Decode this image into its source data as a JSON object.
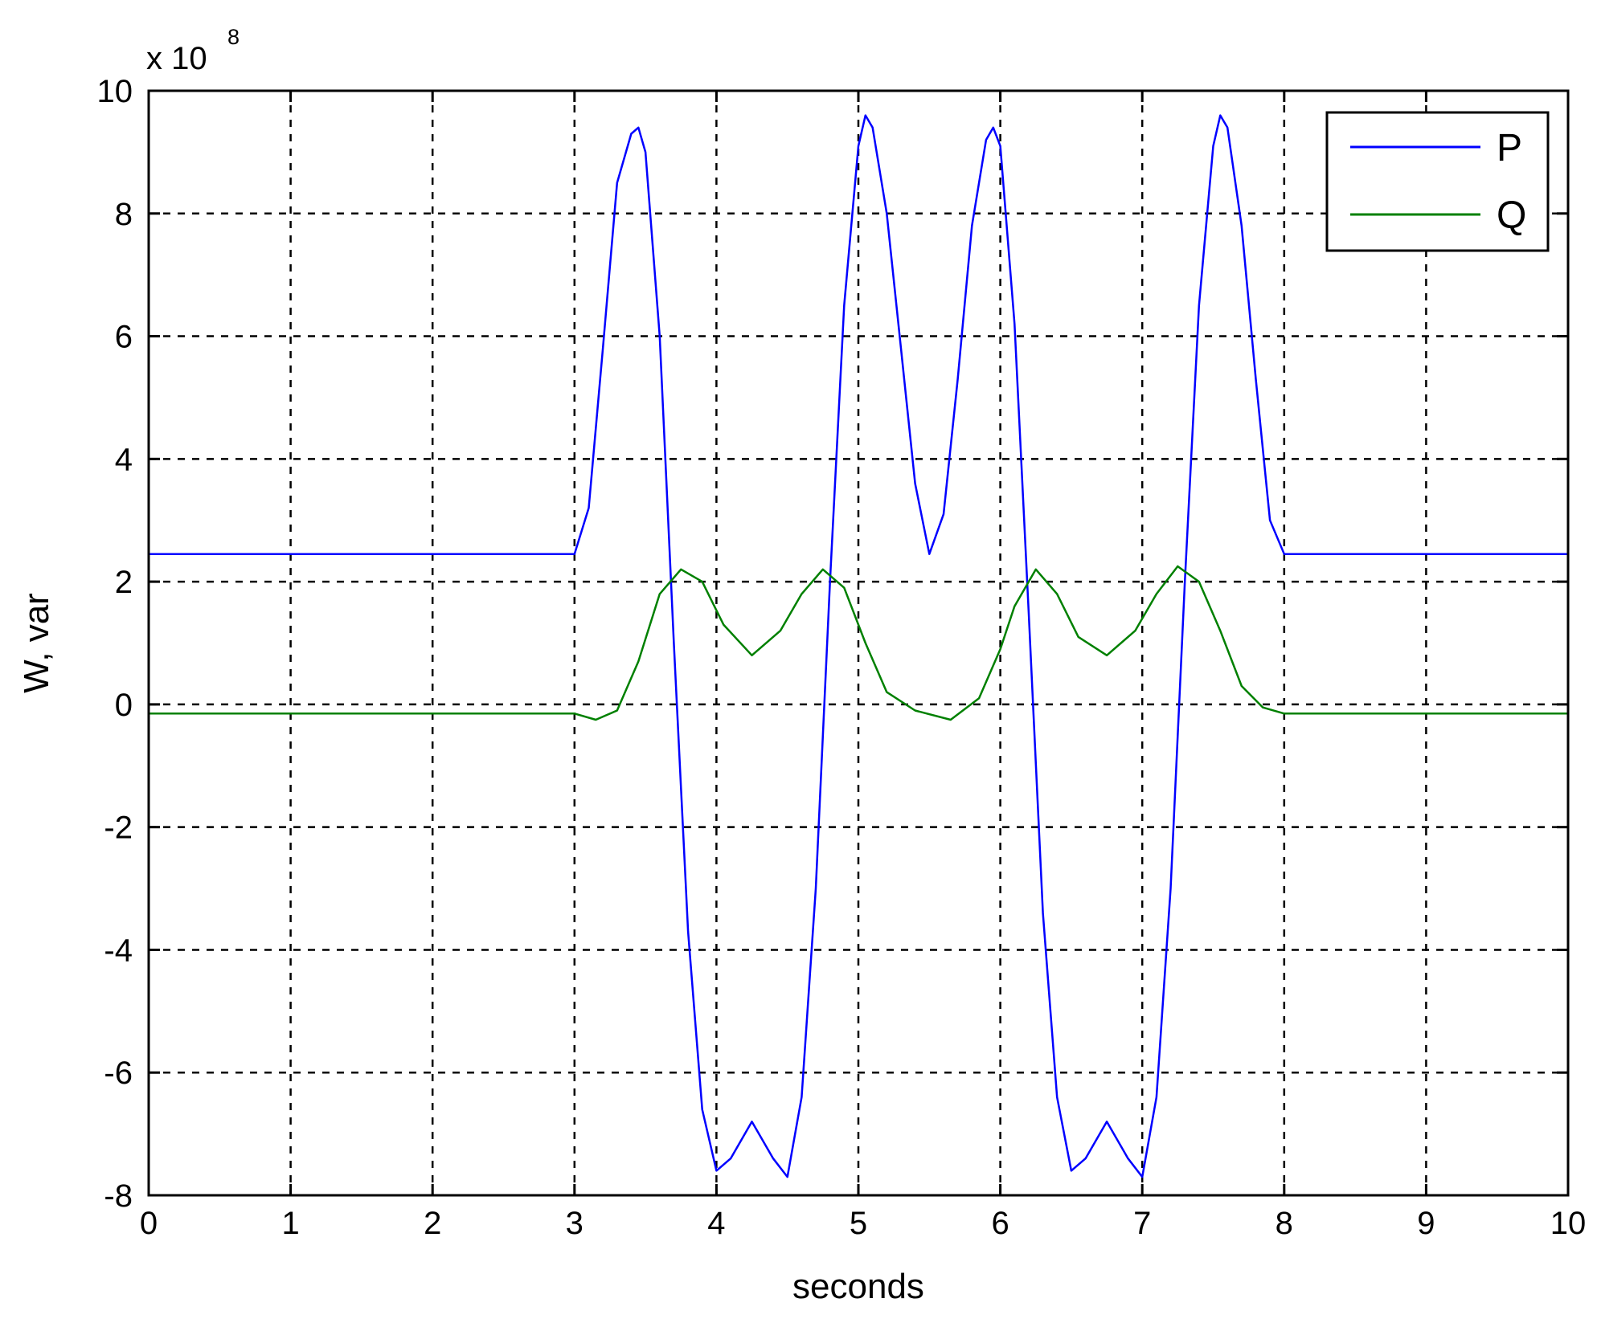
{
  "chart_data": {
    "type": "line",
    "xlabel": "seconds",
    "ylabel": "W, var",
    "y_multiplier": {
      "base": "x 10",
      "exponent": "8"
    },
    "xlim": [
      0,
      10
    ],
    "ylim": [
      -8,
      10
    ],
    "x_ticks": [
      0,
      1,
      2,
      3,
      4,
      5,
      6,
      7,
      8,
      9,
      10
    ],
    "y_ticks": [
      -8,
      -6,
      -4,
      -2,
      0,
      2,
      4,
      6,
      8,
      10
    ],
    "grid": true,
    "legend_position": "top-right",
    "series": [
      {
        "name": "P",
        "color": "#0000ff",
        "x": [
          0,
          3.0,
          3.1,
          3.2,
          3.3,
          3.4,
          3.45,
          3.5,
          3.6,
          3.7,
          3.8,
          3.9,
          4.0,
          4.1,
          4.25,
          4.4,
          4.5,
          4.6,
          4.7,
          4.8,
          4.9,
          5.0,
          5.05,
          5.1,
          5.2,
          5.3,
          5.4,
          5.5,
          5.6,
          5.7,
          5.8,
          5.9,
          5.95,
          6.0,
          6.1,
          6.2,
          6.3,
          6.4,
          6.5,
          6.6,
          6.75,
          6.9,
          7.0,
          7.1,
          7.2,
          7.3,
          7.4,
          7.5,
          7.55,
          7.6,
          7.7,
          7.8,
          7.9,
          8.0,
          10.0
        ],
        "y": [
          2.45,
          2.45,
          3.2,
          5.8,
          8.5,
          9.3,
          9.4,
          9.0,
          6.0,
          1.0,
          -3.7,
          -6.6,
          -7.6,
          -7.4,
          -6.8,
          -7.4,
          -7.7,
          -6.4,
          -3.0,
          2.0,
          6.5,
          9.1,
          9.6,
          9.4,
          8.0,
          5.8,
          3.6,
          2.45,
          3.1,
          5.3,
          7.8,
          9.2,
          9.4,
          9.1,
          6.2,
          1.5,
          -3.4,
          -6.4,
          -7.6,
          -7.4,
          -6.8,
          -7.4,
          -7.7,
          -6.4,
          -3.0,
          2.0,
          6.5,
          9.1,
          9.6,
          9.4,
          7.8,
          5.3,
          3.0,
          2.45,
          2.45
        ]
      },
      {
        "name": "Q",
        "color": "#008000",
        "x": [
          0,
          3.0,
          3.15,
          3.3,
          3.45,
          3.6,
          3.75,
          3.9,
          4.05,
          4.25,
          4.45,
          4.6,
          4.75,
          4.9,
          5.05,
          5.2,
          5.4,
          5.65,
          5.85,
          6.0,
          6.1,
          6.25,
          6.4,
          6.55,
          6.75,
          6.95,
          7.1,
          7.25,
          7.4,
          7.55,
          7.7,
          7.85,
          8.0,
          10.0
        ],
        "y": [
          -0.15,
          -0.15,
          -0.25,
          -0.1,
          0.7,
          1.8,
          2.2,
          2.0,
          1.3,
          0.8,
          1.2,
          1.8,
          2.2,
          1.9,
          1.0,
          0.2,
          -0.1,
          -0.25,
          0.1,
          0.9,
          1.6,
          2.2,
          1.8,
          1.1,
          0.8,
          1.2,
          1.8,
          2.25,
          2.0,
          1.2,
          0.3,
          -0.05,
          -0.15,
          -0.15
        ]
      }
    ]
  }
}
